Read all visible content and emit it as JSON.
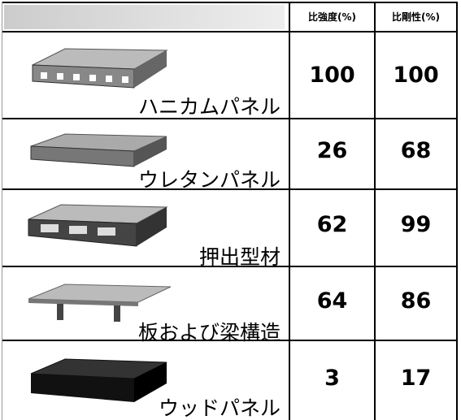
{
  "table": {
    "header": [
      "比強度(%)",
      "比剛性(%)"
    ],
    "rows": [
      [
        "ハニカムパネル",
        100,
        100
      ],
      [
        "ウレタンパネル",
        26,
        68
      ],
      [
        "押出型材",
        62,
        99
      ],
      [
        "板および梁構造",
        64,
        86
      ],
      [
        "ウッドパネル",
        3,
        17
      ]
    ]
  }
}
